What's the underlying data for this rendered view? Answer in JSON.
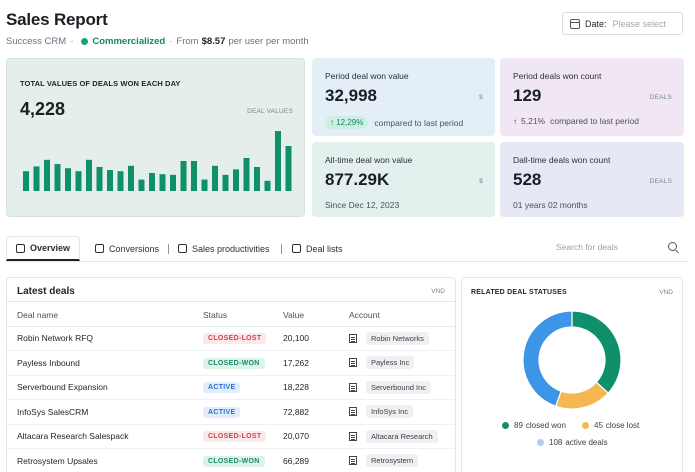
{
  "header": {
    "title": "Sales Report",
    "app": "Success CRM",
    "separator": "-",
    "status": "Commercialized",
    "from_label": "From",
    "price": "$8.57",
    "price_suffix": "per user per month"
  },
  "date_filter": {
    "label": "Date:",
    "placeholder": "Please select"
  },
  "main_card": {
    "title": "TOTAL VALUES OF DEALS WON EACH DAY",
    "value": "4,228",
    "unit": "DEAL VALUES",
    "bars": [
      0.33,
      0.41,
      0.52,
      0.45,
      0.38,
      0.33,
      0.52,
      0.4,
      0.35,
      0.33,
      0.42,
      0.19,
      0.3,
      0.28,
      0.27,
      0.5,
      0.5,
      0.19,
      0.42,
      0.27,
      0.36,
      0.55,
      0.4,
      0.17,
      1.0,
      0.75
    ],
    "bar_color": "#0f8f6a"
  },
  "kpis": [
    {
      "title": "Period deal won value",
      "value": "32,998",
      "unit": "$",
      "change": "12,29%",
      "change_text": "compared to last period"
    },
    {
      "title": "Period deals won count",
      "value": "129",
      "unit": "DEALS",
      "change": "5,21%",
      "change_text": "compared to last period"
    },
    {
      "title": "All-time deal won value",
      "value": "877.29K",
      "unit": "$",
      "foot": "Since Dec 12, 2023"
    },
    {
      "title": "Dall-time deals won count",
      "value": "528",
      "unit": "DEALS",
      "foot": "01 years 02 months"
    }
  ],
  "tabs": [
    {
      "label": "Overview",
      "icon": "dollar-icon"
    },
    {
      "label": "Conversions",
      "icon": "columns-icon"
    },
    {
      "label": "Sales productivities",
      "icon": "people-icon"
    },
    {
      "label": "Deal lists",
      "icon": "table-icon"
    }
  ],
  "search": {
    "placeholder": "Search for deals"
  },
  "latest_deals": {
    "title": "Latest deals",
    "unit": "VND",
    "columns": [
      "Deal name",
      "Status",
      "Value",
      "Account"
    ],
    "rows": [
      {
        "name": "Robin Network RFQ",
        "status": "CLOSED-LOST",
        "value": "20,100",
        "account": "Robin Networks"
      },
      {
        "name": "Payless Inbound",
        "status": "CLOSED-WON",
        "value": "17,262",
        "account": "Payless Inc"
      },
      {
        "name": "Serverbound Expansion",
        "status": "ACTIVE",
        "value": "18,228",
        "account": "Serverbound Inc"
      },
      {
        "name": "InfoSys SalesCRM",
        "status": "ACTIVE",
        "value": "72,882",
        "account": "InfoSys Inc"
      },
      {
        "name": "Altacara Research Salespack",
        "status": "CLOSED-LOST",
        "value": "20,070",
        "account": "Altacara Research"
      },
      {
        "name": "Retrosystem Upsales",
        "status": "CLOSED-WON",
        "value": "66,289",
        "account": "Retrosystem"
      }
    ]
  },
  "related": {
    "title": "RELATED DEAL STATUSES",
    "unit": "VND",
    "colors": {
      "closed_won": "#0f8f6a",
      "close_lost": "#f5b74f",
      "active": "#3d95e8"
    },
    "legend": [
      {
        "count": "89",
        "label": "closed won",
        "color": "#0f8f6a"
      },
      {
        "count": "45",
        "label": "close lost",
        "color": "#f5b74f"
      },
      {
        "count": "108",
        "label": "active deals",
        "color": "#a9cff2"
      }
    ],
    "slices": [
      89,
      45,
      108
    ]
  }
}
